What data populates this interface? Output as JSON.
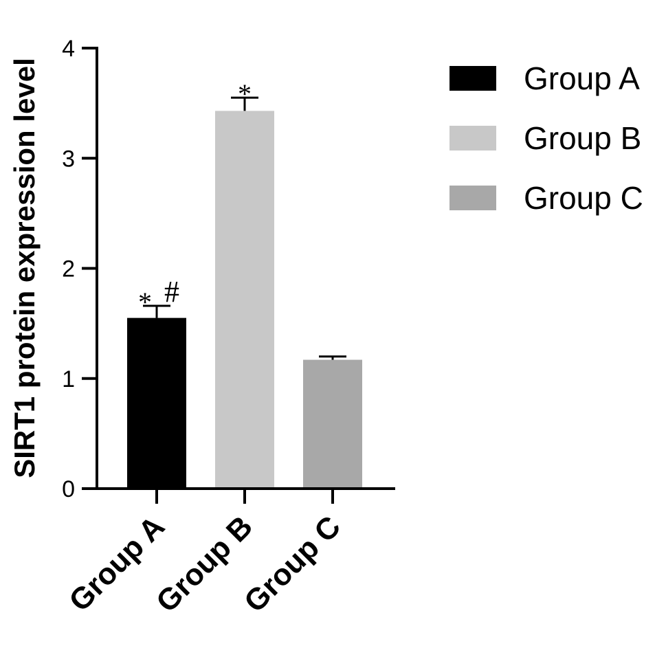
{
  "chart_data": {
    "type": "bar",
    "title": "",
    "xlabel": "",
    "ylabel": "SIRT1 protein expression level",
    "ylim": [
      0,
      4
    ],
    "yticks": [
      0,
      1,
      2,
      3,
      4
    ],
    "categories": [
      "Group A",
      "Group B",
      "Group C"
    ],
    "values": [
      1.55,
      3.43,
      1.17
    ],
    "errors": [
      0.11,
      0.12,
      0.03
    ],
    "colors": [
      "#000000",
      "#c8c8c8",
      "#a8a8a8"
    ],
    "annotations": [
      "*",
      "#",
      "*",
      ""
    ],
    "annotation_rows": [
      [
        "*",
        "#"
      ],
      [
        "*"
      ],
      []
    ],
    "legend": {
      "placement": "right",
      "entries": [
        "Group A",
        "Group B",
        "Group C"
      ]
    },
    "grid": false
  }
}
